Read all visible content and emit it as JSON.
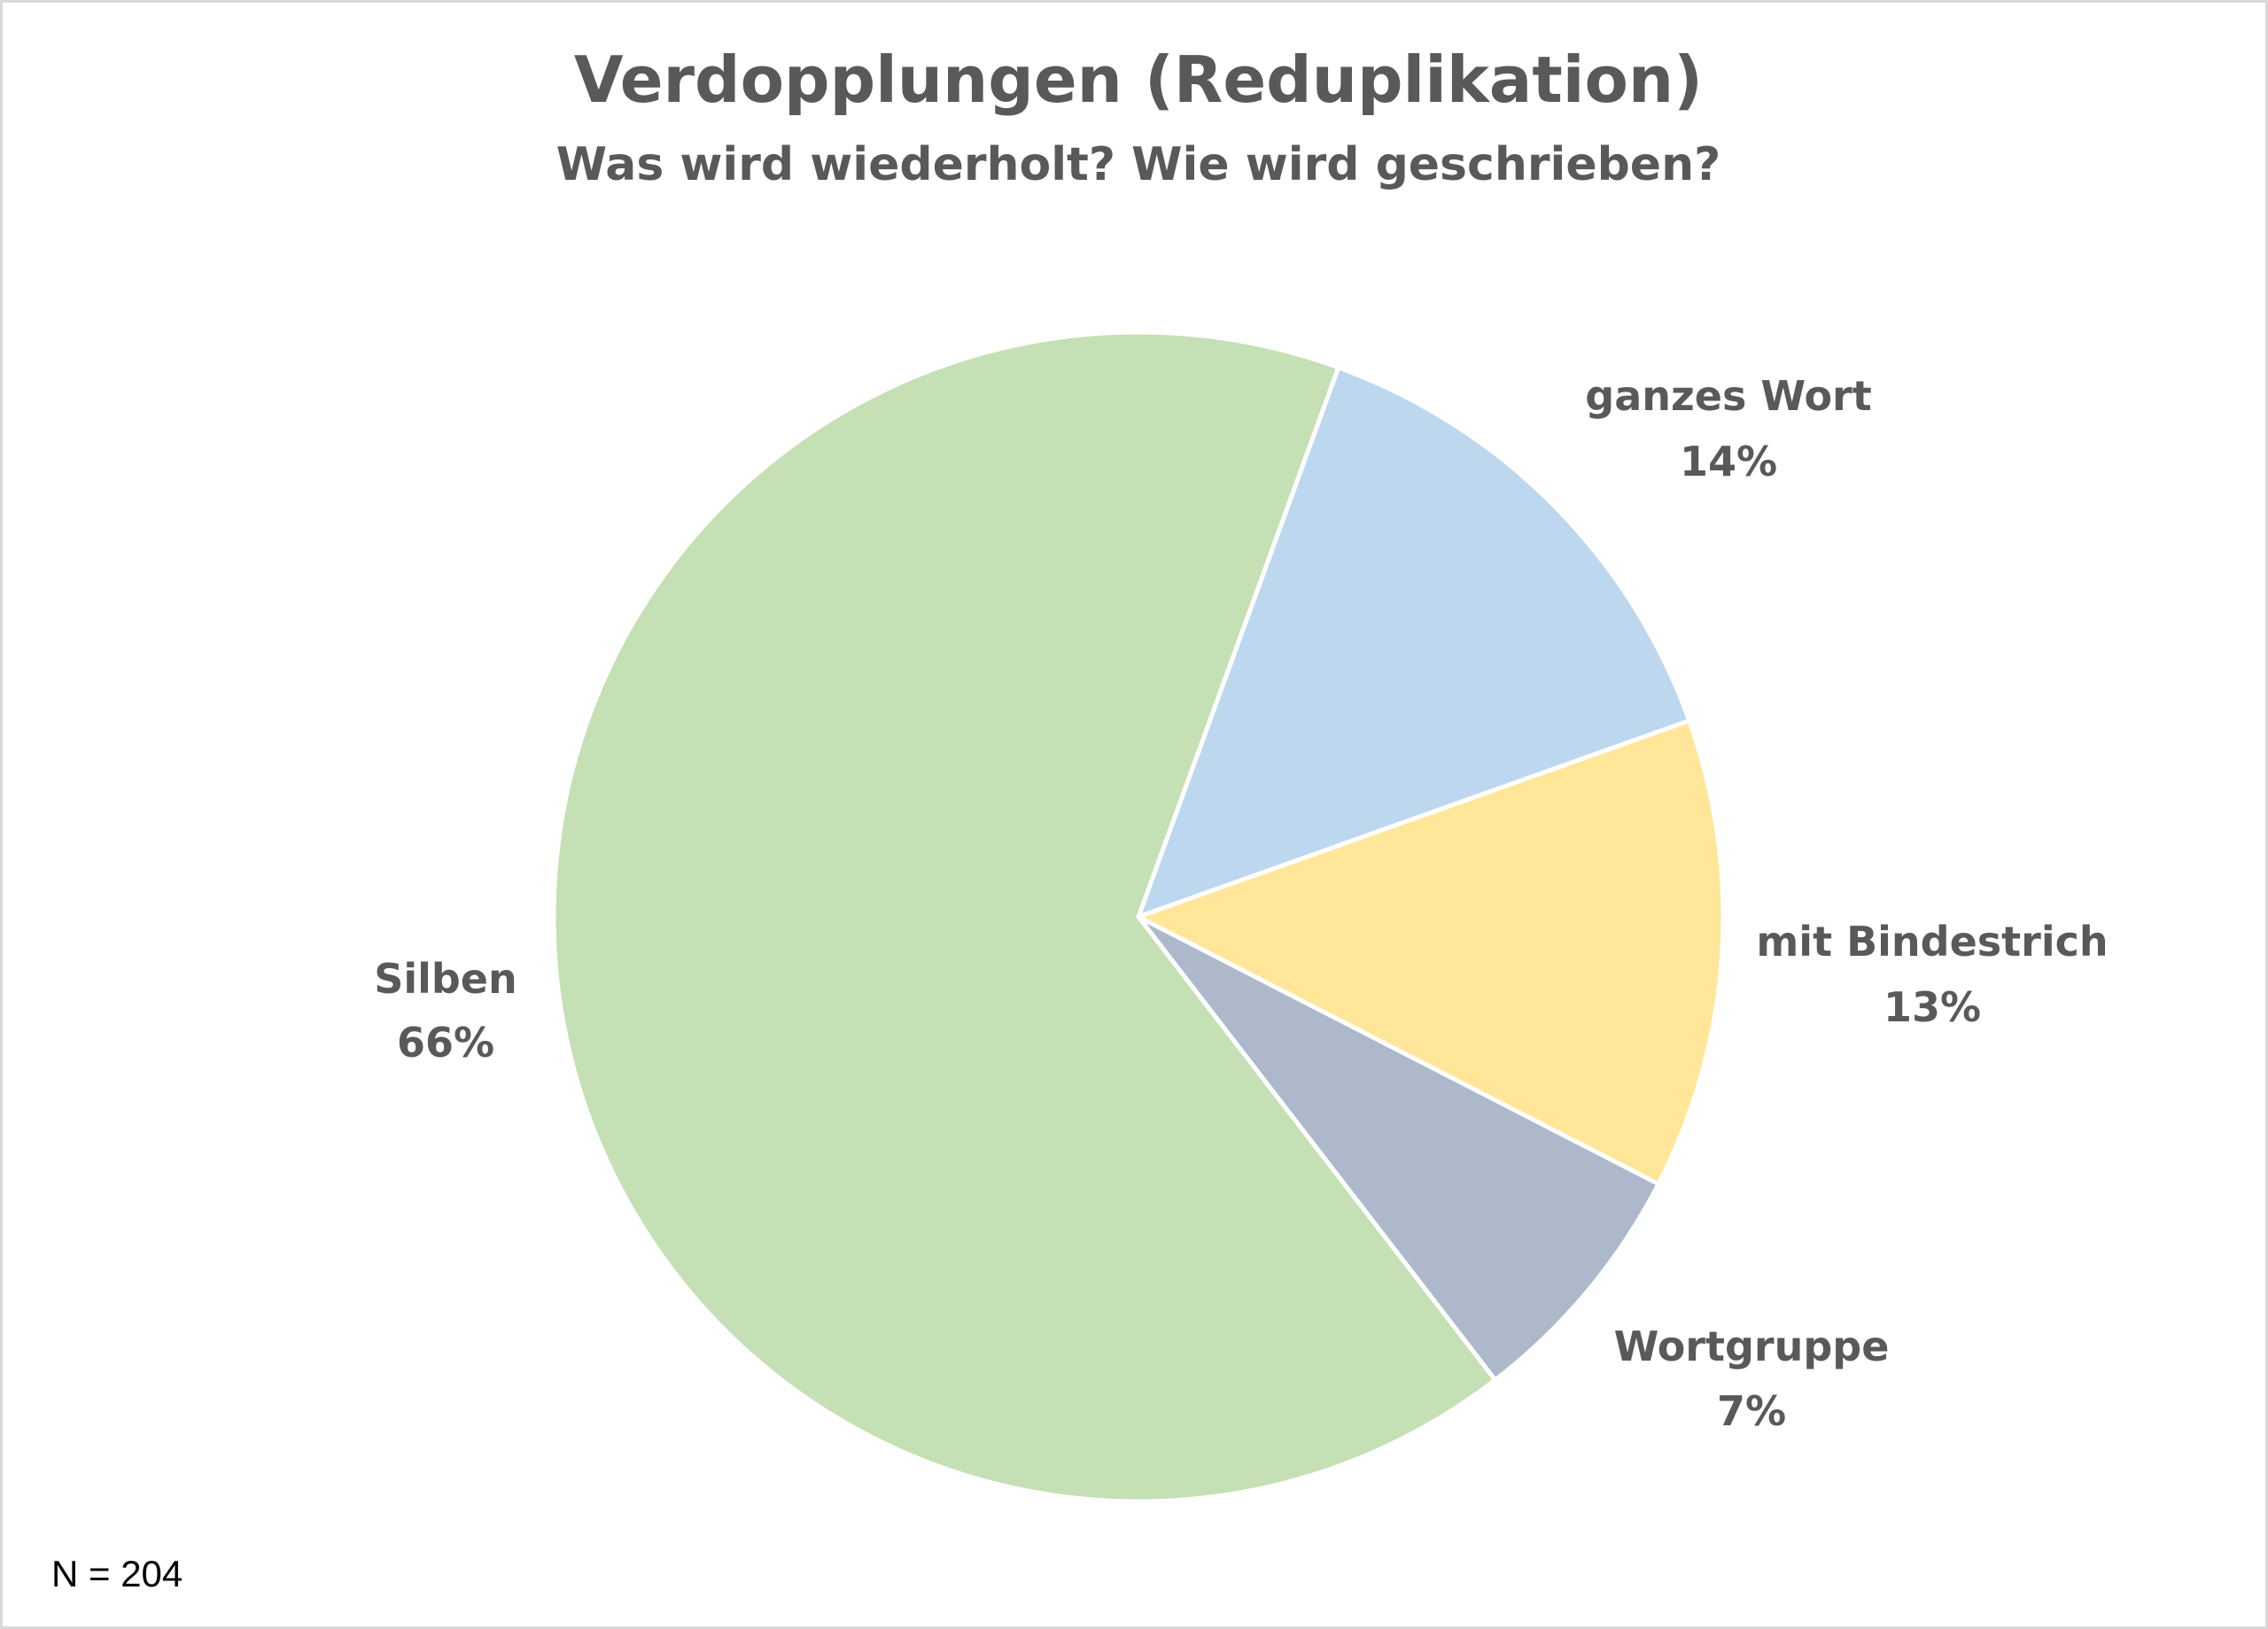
{
  "chart_data": {
    "type": "pie",
    "title": "Verdopplungen (Reduplikation)",
    "subtitle": "Was wird wiederholt? Wie wird geschrieben?",
    "note": "N = 204",
    "start_angle_deg": 20,
    "slices": [
      {
        "label": "ganzes Wort",
        "value": 14,
        "value_label": "14%",
        "color": "#BDD7EE"
      },
      {
        "label": "mit Bindestrich",
        "value": 13,
        "value_label": "13%",
        "color": "#FFE699"
      },
      {
        "label": "Wortgruppe",
        "value": 7,
        "value_label": "7%",
        "color": "#ADB9CA"
      },
      {
        "label": "Silben",
        "value": 66,
        "value_label": "66%",
        "color": "#C5E0B4"
      }
    ]
  }
}
